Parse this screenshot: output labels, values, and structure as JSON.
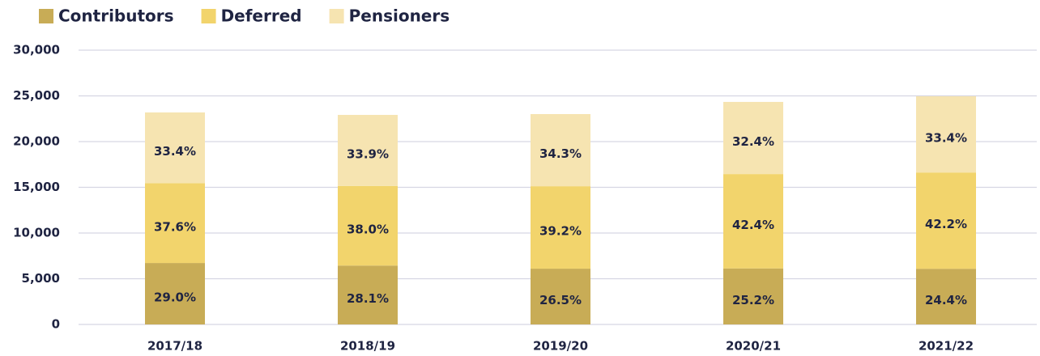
{
  "chart_data": {
    "type": "stacked_bar",
    "categories": [
      "2017/18",
      "2018/19",
      "2019/20",
      "2020/21",
      "2021/22"
    ],
    "series": [
      {
        "name": "Contributors",
        "color": "#c8ac56",
        "values": [
          6720,
          6440,
          6100,
          6130,
          6090
        ],
        "share_labels": [
          "29.0%",
          "28.1%",
          "26.5%",
          "25.2%",
          "24.4%"
        ]
      },
      {
        "name": "Deferred",
        "color": "#f2d46c",
        "values": [
          8720,
          8710,
          9020,
          10320,
          10530
        ],
        "share_labels": [
          "37.6%",
          "38.0%",
          "39.2%",
          "42.4%",
          "42.2%"
        ]
      },
      {
        "name": "Pensioners",
        "color": "#f6e4b1",
        "values": [
          7750,
          7770,
          7890,
          7890,
          8340
        ],
        "share_labels": [
          "33.4%",
          "33.9%",
          "34.3%",
          "32.4%",
          "33.4%"
        ]
      }
    ],
    "ylim": [
      0,
      30000
    ],
    "yticks": [
      0,
      {
        "value": 5000,
        "label": "5,000"
      },
      {
        "value": 10000,
        "label": "10,000"
      },
      {
        "value": 15000,
        "label": "15,000"
      },
      {
        "value": 20000,
        "label": "20,000"
      },
      {
        "value": 25000,
        "label": "25,000"
      },
      {
        "value": 30000,
        "label": "30,000"
      }
    ],
    "grid": true,
    "legend": "top-left"
  }
}
